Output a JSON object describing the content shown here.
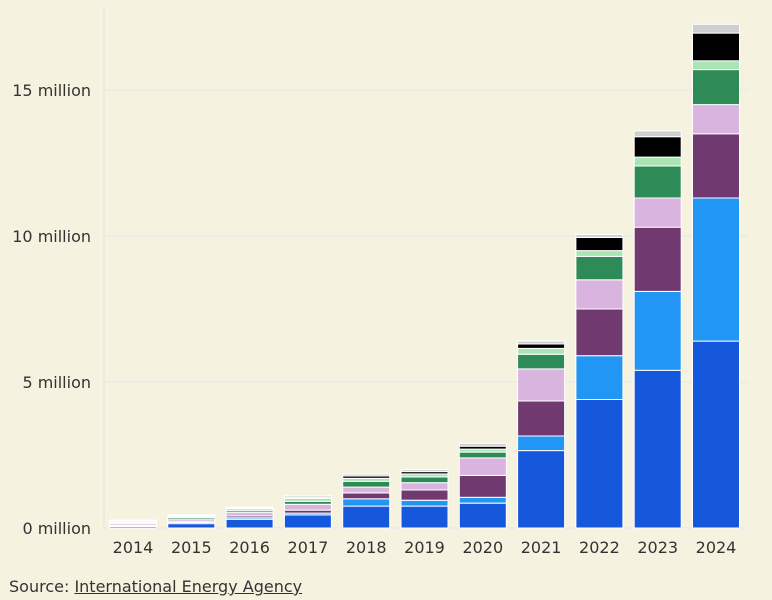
{
  "source": {
    "prefix": "Source: ",
    "link_text": "International Energy Agency"
  },
  "chart_data": {
    "type": "bar",
    "stacked": true,
    "title": "",
    "xlabel": "",
    "ylabel": "",
    "ylim": [
      0,
      17500000
    ],
    "y_ticks": [
      0,
      5000000,
      10000000,
      15000000
    ],
    "y_tick_labels": [
      "0 million",
      "5 million",
      "10 million",
      "15 million"
    ],
    "grid": true,
    "legend": "none",
    "categories": [
      "2014",
      "2015",
      "2016",
      "2017",
      "2018",
      "2019",
      "2020",
      "2021",
      "2022",
      "2023",
      "2024"
    ],
    "series": [
      {
        "color": "#1558dc",
        "values": [
          50000,
          150000,
          300000,
          450000,
          750000,
          750000,
          850000,
          2650000,
          4400000,
          5400000,
          6400000
        ]
      },
      {
        "color": "#2196f5",
        "values": [
          20000,
          40000,
          50000,
          60000,
          250000,
          200000,
          200000,
          500000,
          1500000,
          2700000,
          4900000
        ]
      },
      {
        "color": "#703970",
        "values": [
          30000,
          40000,
          60000,
          100000,
          200000,
          350000,
          750000,
          1200000,
          1600000,
          2200000,
          2200000
        ]
      },
      {
        "color": "#d9b4de",
        "values": [
          60000,
          80000,
          120000,
          200000,
          200000,
          250000,
          600000,
          1100000,
          1000000,
          1000000,
          1000000
        ]
      },
      {
        "color": "#2e8b57",
        "values": [
          30000,
          50000,
          60000,
          100000,
          200000,
          200000,
          200000,
          500000,
          800000,
          1100000,
          1200000
        ]
      },
      {
        "color": "#a9e5b3",
        "values": [
          40000,
          40000,
          70000,
          100000,
          100000,
          100000,
          100000,
          200000,
          200000,
          300000,
          300000
        ]
      },
      {
        "color": "#000000",
        "values": [
          20000,
          20000,
          20000,
          30000,
          80000,
          80000,
          100000,
          150000,
          450000,
          700000,
          950000
        ]
      },
      {
        "color": "#cfcfcf",
        "values": [
          20000,
          30000,
          30000,
          60000,
          70000,
          70000,
          100000,
          100000,
          100000,
          200000,
          300000
        ]
      }
    ]
  }
}
